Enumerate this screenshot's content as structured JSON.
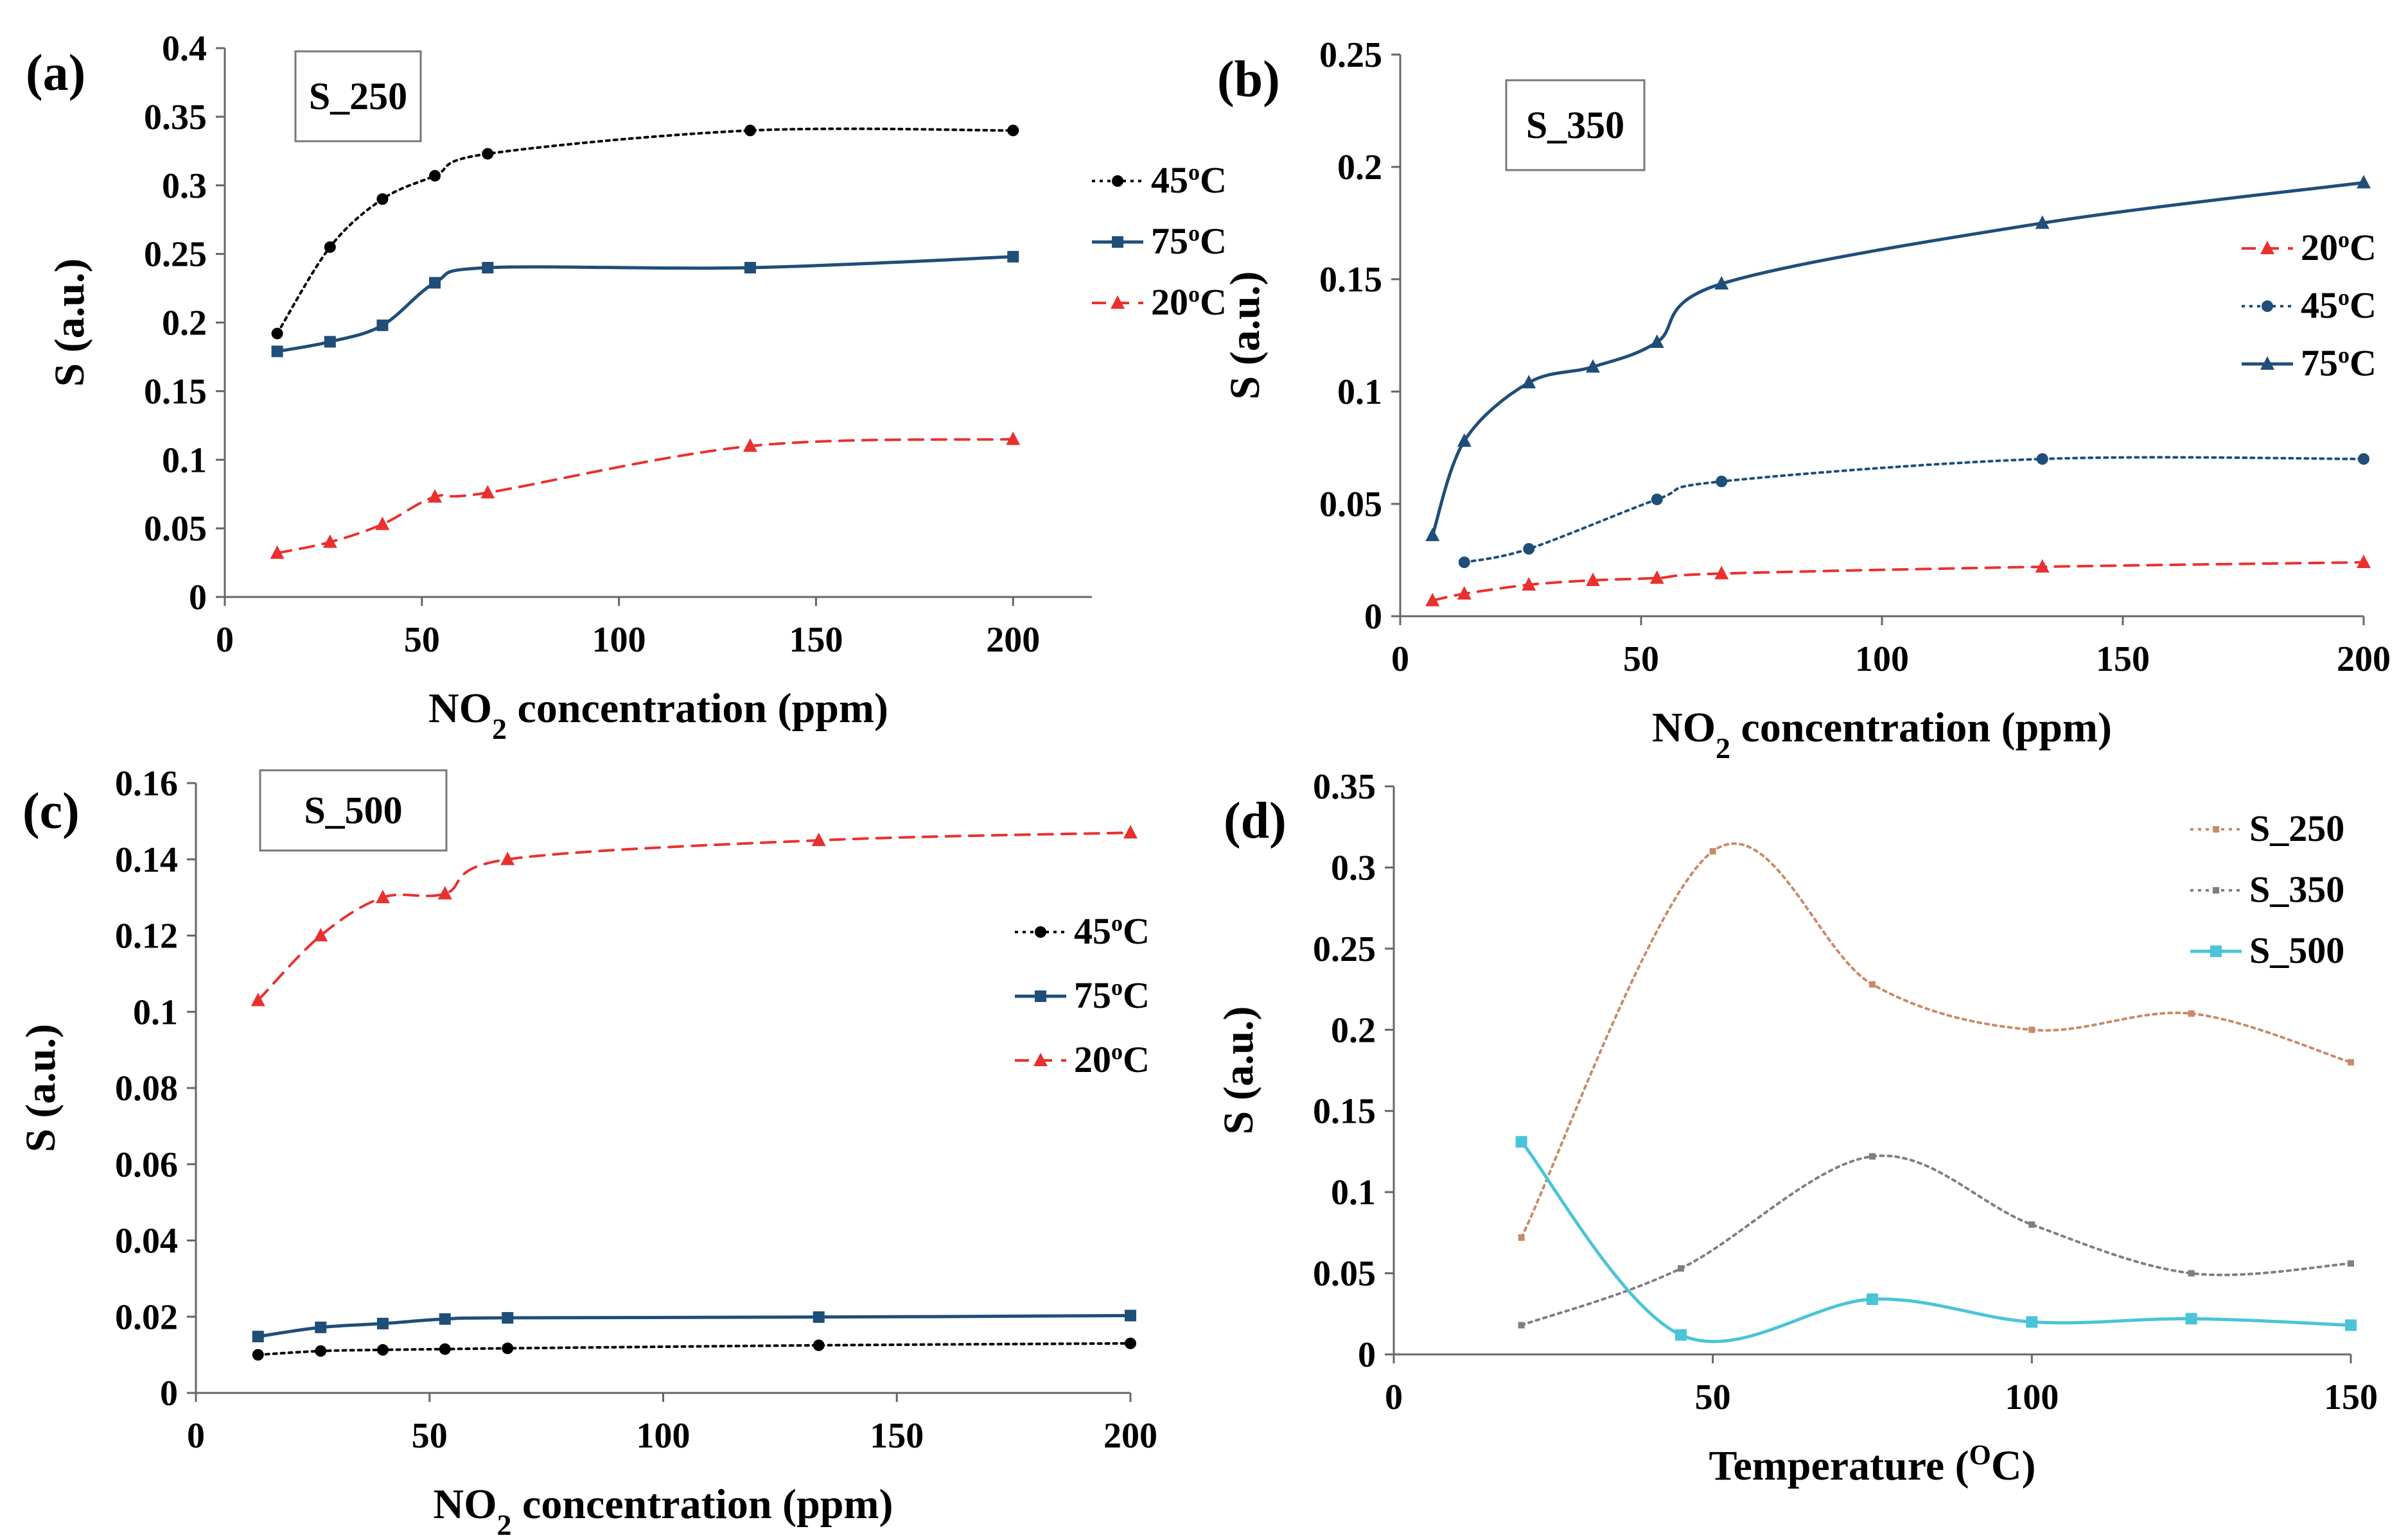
{
  "chart_data": [
    {
      "type": "line",
      "panel_label": "(a)",
      "sample_label": "S_250",
      "xlabel": "NO2 concentration (ppm)",
      "xlabel_main": "NO",
      "xlabel_sub": "2",
      "xlabel_rest": " concentration (ppm)",
      "ylabel": "S (a.u.)",
      "xlim": [
        0,
        220
      ],
      "ylim": [
        0,
        0.4
      ],
      "xticks": [
        0,
        50,
        100,
        150,
        200
      ],
      "yticks": [
        0,
        0.05,
        0.1,
        0.15,
        0.2,
        0.25,
        0.3,
        0.35,
        0.4
      ],
      "ytick_labels": [
        "0",
        "0.05",
        "0.1",
        "0.15",
        "0.2",
        "0.25",
        "0.3",
        "0.35",
        "0.4"
      ],
      "legend_position": "right",
      "series": [
        {
          "name": "45",
          "unit": "C",
          "color": "#000000",
          "dash": "dotted",
          "marker": "circle",
          "x": [
            13.3,
            26.7,
            40,
            53.3,
            66.7,
            133.3,
            200
          ],
          "values": [
            0.192,
            0.255,
            0.29,
            0.307,
            0.323,
            0.34,
            0.34
          ]
        },
        {
          "name": "75",
          "unit": "C",
          "color": "#1f4e79",
          "dash": "solid",
          "marker": "square",
          "x": [
            13.3,
            26.7,
            40,
            53.3,
            66.7,
            133.3,
            200
          ],
          "values": [
            0.179,
            0.186,
            0.198,
            0.229,
            0.24,
            0.24,
            0.248
          ]
        },
        {
          "name": "20",
          "unit": "C",
          "color": "#e8312f",
          "dash": "dashed",
          "marker": "triangle",
          "x": [
            13.3,
            26.7,
            40,
            53.3,
            66.7,
            133.3,
            200
          ],
          "values": [
            0.032,
            0.04,
            0.053,
            0.073,
            0.076,
            0.11,
            0.115
          ]
        }
      ]
    },
    {
      "type": "line",
      "panel_label": "(b)",
      "sample_label": "S_350",
      "xlabel": "NO2 concentration (ppm)",
      "xlabel_main": "NO",
      "xlabel_sub": "2",
      "xlabel_rest": " concentration (ppm)",
      "ylabel": "S (a.u.)",
      "xlim": [
        0,
        200
      ],
      "ylim": [
        0,
        0.25
      ],
      "xticks": [
        0,
        50,
        100,
        150,
        200
      ],
      "yticks": [
        0,
        0.05,
        0.1,
        0.15,
        0.2,
        0.25
      ],
      "ytick_labels": [
        "0",
        "0.05",
        "0.1",
        "0.15",
        "0.2",
        "0.25"
      ],
      "legend_position": "right",
      "series": [
        {
          "name": "20",
          "unit": "C",
          "color": "#e8312f",
          "dash": "dashed",
          "marker": "triangle",
          "x": [
            6.7,
            13.3,
            26.7,
            40,
            53.3,
            66.7,
            133.3,
            200
          ],
          "values": [
            0.007,
            0.01,
            0.014,
            0.016,
            0.017,
            0.019,
            0.022,
            0.024
          ]
        },
        {
          "name": "45",
          "unit": "C",
          "color": "#1f4e79",
          "dash": "dotted",
          "marker": "circle",
          "x": [
            13.3,
            26.7,
            53.3,
            66.7,
            133.3,
            200
          ],
          "values": [
            0.024,
            0.03,
            0.052,
            0.06,
            0.07,
            0.07
          ]
        },
        {
          "name": "75",
          "unit": "C",
          "color": "#1f4e79",
          "dash": "solid",
          "marker": "triangle",
          "x": [
            6.7,
            13.3,
            26.7,
            40,
            53.3,
            66.7,
            133.3,
            200
          ],
          "values": [
            0.036,
            0.078,
            0.104,
            0.111,
            0.122,
            0.148,
            0.175,
            0.193
          ]
        }
      ]
    },
    {
      "type": "line",
      "panel_label": "(c)",
      "sample_label": "S_500",
      "xlabel": "NO2 concentration (ppm)",
      "xlabel_main": "NO",
      "xlabel_sub": "2",
      "xlabel_rest": " concentration (ppm)",
      "ylabel": "S (a.u.)",
      "xlim": [
        0,
        200
      ],
      "ylim": [
        0,
        0.16
      ],
      "xticks": [
        0,
        50,
        100,
        150,
        200
      ],
      "yticks": [
        0,
        0.02,
        0.04,
        0.06,
        0.08,
        0.1,
        0.12,
        0.14,
        0.16
      ],
      "ytick_labels": [
        "0",
        "0.02",
        "0.04",
        "0.06",
        "0.08",
        "0.1",
        "0.12",
        "0.14",
        "0.16"
      ],
      "legend_position": "right",
      "series": [
        {
          "name": "45",
          "unit": "C",
          "color": "#000000",
          "dash": "dotted",
          "marker": "circle",
          "x": [
            13.3,
            26.7,
            40,
            53.3,
            66.7,
            133.3,
            200
          ],
          "values": [
            0.01,
            0.011,
            0.0113,
            0.0115,
            0.0117,
            0.0125,
            0.013
          ]
        },
        {
          "name": "75",
          "unit": "C",
          "color": "#1f4e79",
          "dash": "solid",
          "marker": "square",
          "x": [
            13.3,
            26.7,
            40,
            53.3,
            66.7,
            133.3,
            200
          ],
          "values": [
            0.0148,
            0.0172,
            0.0182,
            0.0194,
            0.0197,
            0.0199,
            0.0203
          ]
        },
        {
          "name": "20",
          "unit": "C",
          "color": "#e8312f",
          "dash": "dashed",
          "marker": "triangle",
          "x": [
            13.3,
            26.7,
            40,
            53.3,
            66.7,
            133.3,
            200
          ],
          "values": [
            0.103,
            0.12,
            0.13,
            0.131,
            0.14,
            0.145,
            0.147
          ]
        }
      ]
    },
    {
      "type": "line",
      "panel_label": "(d)",
      "xlabel": "Temperature (OC)",
      "xlabel_main": "Temperature (",
      "xlabel_sup": "O",
      "xlabel_rest": "C)",
      "ylabel": "S (a.u.)",
      "xlim": [
        0,
        150
      ],
      "ylim": [
        0,
        0.35
      ],
      "xticks": [
        0,
        50,
        100,
        150
      ],
      "yticks": [
        0,
        0.05,
        0.1,
        0.15,
        0.2,
        0.25,
        0.3,
        0.35
      ],
      "ytick_labels": [
        "0",
        "0.05",
        "0.1",
        "0.15",
        "0.2",
        "0.25",
        "0.3",
        "0.35"
      ],
      "legend_position": "top-right",
      "series": [
        {
          "name": "S_250",
          "color": "#c98a6a",
          "dash": "dotted",
          "marker": "dot",
          "x": [
            20,
            50,
            75,
            100,
            125,
            150
          ],
          "values": [
            0.072,
            0.31,
            0.228,
            0.2,
            0.21,
            0.18
          ]
        },
        {
          "name": "S_350",
          "color": "#7f7f7f",
          "dash": "dotted",
          "marker": "dot",
          "x": [
            20,
            45,
            75,
            100,
            125,
            150
          ],
          "values": [
            0.018,
            0.053,
            0.122,
            0.08,
            0.05,
            0.056
          ]
        },
        {
          "name": "S_500",
          "color": "#4bc4d9",
          "dash": "solid",
          "marker": "square",
          "x": [
            20,
            45,
            75,
            100,
            125,
            150
          ],
          "values": [
            0.131,
            0.012,
            0.034,
            0.02,
            0.022,
            0.018
          ]
        }
      ]
    }
  ]
}
